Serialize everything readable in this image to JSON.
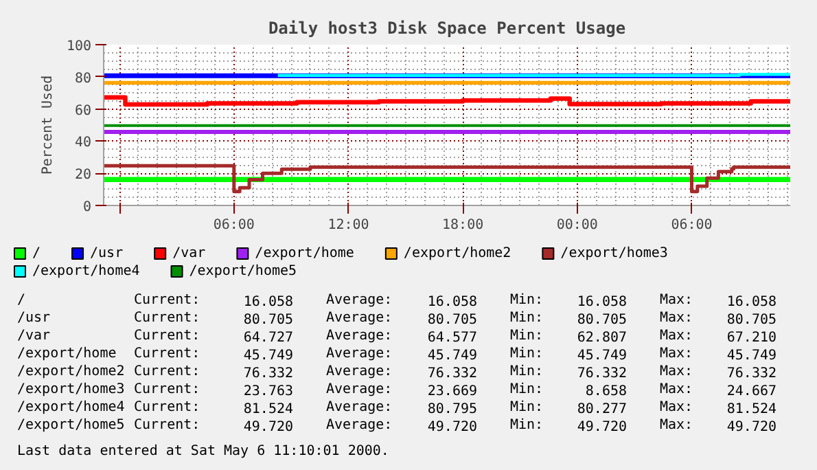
{
  "chart_data": {
    "type": "step",
    "title": "Daily host3 Disk Space Percent Usage",
    "ylabel": "Percent Used",
    "xlim": [
      "2000-05-04T23:10",
      "2000-05-06T11:10"
    ],
    "xticks": [
      {
        "value": "2000-05-05T00:00",
        "label": null
      },
      {
        "value": "2000-05-05T06:00",
        "label": "06:00"
      },
      {
        "value": "2000-05-05T12:00",
        "label": "12:00"
      },
      {
        "value": "2000-05-05T18:00",
        "label": "18:00"
      },
      {
        "value": "2000-05-06T00:00",
        "label": "00:00"
      },
      {
        "value": "2000-05-06T06:00",
        "label": "06:00"
      }
    ],
    "ylim": [
      0,
      100
    ],
    "yticks": [
      0,
      20,
      40,
      60,
      80,
      100
    ],
    "grid": true,
    "legend": "bottom",
    "marker": "none",
    "line_style": "solid",
    "series": [
      {
        "name": "/",
        "color": "#00ff00",
        "x": [
          "2000-05-04T23:10",
          "2000-05-06T11:10"
        ],
        "values": [
          16.1,
          16.1
        ]
      },
      {
        "name": "/usr",
        "color": "#0000ff",
        "x": [
          "2000-05-04T23:10",
          "2000-05-06T11:10"
        ],
        "values": [
          80.7,
          80.7
        ]
      },
      {
        "name": "/var",
        "color": "#ff0000",
        "x": [
          "2000-05-04T23:10",
          "2000-05-05T00:18",
          "2000-05-05T04:36",
          "2000-05-05T09:18",
          "2000-05-05T13:36",
          "2000-05-05T18:00",
          "2000-05-05T22:36",
          "2000-05-05T23:36",
          "2000-05-06T04:24",
          "2000-05-06T09:06",
          "2000-05-06T11:10"
        ],
        "values": [
          67.2,
          62.8,
          63.5,
          64.2,
          64.7,
          65.3,
          66.5,
          63.0,
          63.5,
          64.7,
          64.7
        ]
      },
      {
        "name": "/export/home",
        "color": "#a020f0",
        "x": [
          "2000-05-04T23:10",
          "2000-05-06T11:10"
        ],
        "values": [
          45.7,
          45.7
        ]
      },
      {
        "name": "/export/home2",
        "color": "#ffa500",
        "x": [
          "2000-05-04T23:10",
          "2000-05-06T11:10"
        ],
        "values": [
          76.3,
          76.3
        ]
      },
      {
        "name": "/export/home3",
        "color": "#a52a2a",
        "x": [
          "2000-05-04T23:10",
          "2000-05-05T05:54",
          "2000-05-05T06:00",
          "2000-05-05T06:18",
          "2000-05-05T06:48",
          "2000-05-05T07:30",
          "2000-05-05T08:30",
          "2000-05-05T10:00",
          "2000-05-06T06:00",
          "2000-05-06T06:18",
          "2000-05-06T06:48",
          "2000-05-06T07:24",
          "2000-05-06T08:06",
          "2000-05-06T08:12",
          "2000-05-06T11:10"
        ],
        "values": [
          24.7,
          24.7,
          8.7,
          11.0,
          16.0,
          20.0,
          22.5,
          23.8,
          8.7,
          12.0,
          17.0,
          21.0,
          22.8,
          23.8,
          23.8
        ]
      },
      {
        "name": "/export/home4",
        "color": "#00ffff",
        "x": [
          "2000-05-05T08:18",
          "2000-05-06T08:30",
          "2000-05-06T11:10"
        ],
        "values": [
          80.9,
          81.5,
          81.5
        ]
      },
      {
        "name": "/export/home5",
        "color": "#008f00",
        "x": [
          "2000-05-04T23:10",
          "2000-05-06T11:10"
        ],
        "values": [
          49.7,
          49.7
        ]
      }
    ],
    "annotations": [
      "/",
      "Current:",
      "16.058",
      "Average:",
      "16.058",
      "Min:",
      "16.058",
      "Max:",
      "16.058",
      "/usr",
      "Current:",
      "80.705",
      "Average:",
      "80.705",
      "Min:",
      "80.705",
      "Max:",
      "80.705",
      "/var",
      "Current:",
      "64.727",
      "Average:",
      "64.577",
      "Min:",
      "62.807",
      "Max:",
      "67.210",
      "/export/home",
      "Current:",
      "45.749",
      "Average:",
      "45.749",
      "Min:",
      "45.749",
      "Max:",
      "45.749",
      "/export/home2",
      "Current:",
      "76.332",
      "Average:",
      "76.332",
      "Min:",
      "76.332",
      "Max:",
      "76.332",
      "/export/home3",
      "Current:",
      "23.763",
      "Average:",
      "23.669",
      "Min:",
      "8.658",
      "Max:",
      "24.667",
      "/export/home4",
      "Current:",
      "81.524",
      "Average:",
      "80.795",
      "Min:",
      "80.277",
      "Max:",
      "81.524",
      "/export/home5",
      "Current:",
      "49.720",
      "Average:",
      "49.720",
      "Min:",
      "49.720",
      "Max:",
      "49.720",
      "Last data entered at Sat May  6 11:10:01 2000."
    ]
  }
}
